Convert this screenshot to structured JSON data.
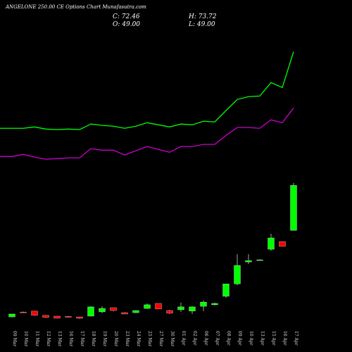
{
  "chart_data": {
    "type": "candlestick",
    "title": "ANGELONE 250.00 CE Options Chart Munafasutra.com",
    "quote": {
      "close": "C: 72.46",
      "high": "H: 73.72",
      "open": "O: 49.00",
      "low": "L: 49.00"
    },
    "categories": [
      "09 Mar",
      "10 Mar",
      "11 Mar",
      "12 Mar",
      "13 Mar",
      "16 Mar",
      "17 Mar",
      "18 Mar",
      "19 Mar",
      "20 Mar",
      "23 Mar",
      "24 Mar",
      "25 Mar",
      "27 Mar",
      "30 Mar",
      "01 Apr",
      "02 Apr",
      "06 Apr",
      "07 Apr",
      "08 Apr",
      "09 Apr",
      "10 Apr",
      "13 Apr",
      "15 Apr",
      "16 Apr",
      "17 Apr"
    ],
    "open": [
      4.0,
      6.5,
      7.0,
      4.8,
      4.4,
      4.2,
      4.0,
      4.4,
      6.6,
      8.8,
      6.2,
      6.2,
      8.4,
      11.0,
      7.3,
      7.7,
      7.0,
      9.5,
      10.3,
      14.7,
      21.2,
      32.6,
      33.5,
      39.2,
      43.2,
      49.0
    ],
    "high": [
      5.6,
      6.8,
      7.0,
      4.8,
      4.5,
      4.4,
      4.0,
      9.5,
      9.5,
      8.8,
      6.4,
      7.5,
      11.0,
      11.0,
      7.7,
      11.4,
      9.5,
      12.5,
      11.4,
      21.2,
      36.6,
      36.6,
      34.0,
      47.3,
      43.2,
      73.72
    ],
    "low": [
      3.8,
      6.0,
      4.6,
      3.5,
      3.2,
      3.6,
      3.0,
      4.2,
      6.0,
      7.0,
      5.5,
      6.0,
      8.2,
      8.1,
      5.5,
      6.6,
      5.5,
      7.0,
      9.9,
      13.9,
      20.5,
      31.5,
      33.3,
      38.5,
      40.7,
      49.0
    ],
    "close": [
      5.5,
      6.2,
      4.8,
      3.7,
      3.3,
      3.8,
      3.3,
      9.2,
      8.4,
      7.3,
      5.5,
      7.3,
      10.3,
      8.1,
      5.9,
      9.2,
      9.2,
      11.7,
      11.0,
      21.2,
      30.8,
      33.3,
      33.7,
      45.1,
      40.7,
      72.46
    ],
    "up_color": "#00ff00",
    "down_color": "#ff0000",
    "series": [
      {
        "color": "#00ff00",
        "values": [
          102.2,
          102.2,
          102.9,
          101.8,
          101.5,
          101.8,
          101.5,
          104.4,
          103.7,
          103.3,
          102.2,
          103.3,
          105.1,
          104.0,
          102.9,
          104.4,
          104.0,
          105.9,
          105.5,
          111.4,
          117.2,
          118.7,
          119.0,
          126.0,
          123.4,
          142.1
        ]
      },
      {
        "color": "#cc00cc",
        "values": [
          87.5,
          88.6,
          87.2,
          86.1,
          86.4,
          86.8,
          86.8,
          91.6,
          90.8,
          90.8,
          88.3,
          90.5,
          92.7,
          91.2,
          89.7,
          92.7,
          92.7,
          93.8,
          93.8,
          98.5,
          102.6,
          102.6,
          102.2,
          106.6,
          105.1,
          112.8
        ]
      }
    ],
    "ylim": [
      0,
      169
    ]
  }
}
